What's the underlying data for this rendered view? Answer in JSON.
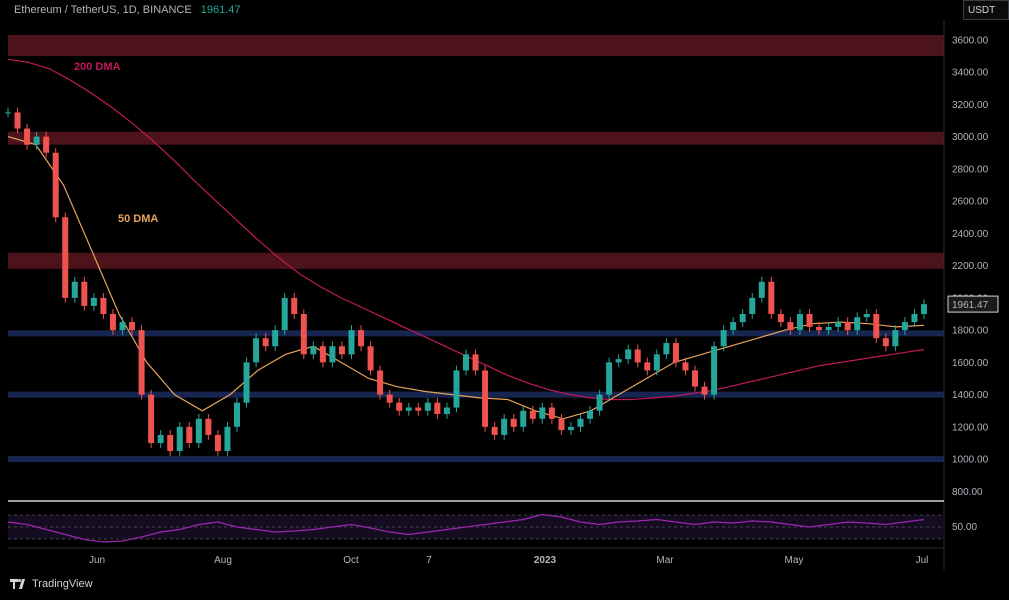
{
  "header": {
    "symbol": "Ethereum / TetherUS, 1D, BINANCE",
    "last_price": "1961.47"
  },
  "currency": "USDT",
  "brand": "TradingView",
  "colors": {
    "up": "#26a69a",
    "down": "#ef5350",
    "dma200": "#c2185b",
    "dma50": "#e8a35a",
    "rsi": "#9c27b0",
    "resistance": "#5a1620",
    "support": "#1a2a5a"
  },
  "chart_data": [
    {
      "type": "candlestick",
      "title": "Ethereum / TetherUS, 1D, BINANCE",
      "ylim": [
        600,
        3700
      ],
      "yticks": [
        "3600.00",
        "3400.00",
        "3200.00",
        "3000.00",
        "2800.00",
        "2600.00",
        "2400.00",
        "2200.00",
        "2000.00",
        "1800.00",
        "1600.00",
        "1400.00",
        "1200.00",
        "1000.00",
        "800.00"
      ],
      "xticks": [
        "Jun",
        "Aug",
        "Oct",
        "7",
        "2023",
        "Mar",
        "May",
        "Jul"
      ],
      "last_price_label": "1961.47",
      "annotations": [
        "200 DMA",
        "50 DMA"
      ],
      "resistance_zones": [
        [
          3500,
          3630
        ],
        [
          2950,
          3030
        ],
        [
          2180,
          2280
        ]
      ],
      "support_lines": [
        1780,
        1400,
        1000
      ],
      "close": [
        3150,
        3050,
        2950,
        3000,
        2900,
        2500,
        2000,
        2100,
        1950,
        2000,
        1900,
        1800,
        1850,
        1800,
        1400,
        1100,
        1150,
        1050,
        1200,
        1100,
        1250,
        1150,
        1050,
        1200,
        1350,
        1600,
        1750,
        1700,
        1800,
        2000,
        1900,
        1650,
        1700,
        1600,
        1700,
        1650,
        1800,
        1700,
        1550,
        1400,
        1350,
        1300,
        1320,
        1300,
        1350,
        1280,
        1320,
        1550,
        1650,
        1550,
        1200,
        1150,
        1250,
        1200,
        1300,
        1250,
        1320,
        1250,
        1180,
        1200,
        1250,
        1300,
        1400,
        1600,
        1620,
        1680,
        1600,
        1550,
        1650,
        1720,
        1600,
        1550,
        1450,
        1400,
        1700,
        1800,
        1850,
        1900,
        2000,
        2100,
        1900,
        1850,
        1800,
        1900,
        1820,
        1800,
        1820,
        1850,
        1800,
        1880,
        1900,
        1750,
        1700,
        1800,
        1850,
        1900,
        1961
      ],
      "dma200": [
        3480,
        3460,
        3420,
        3350,
        3270,
        3180,
        3080,
        2970,
        2850,
        2720,
        2600,
        2480,
        2360,
        2250,
        2150,
        2070,
        2000,
        1940,
        1880,
        1820,
        1760,
        1700,
        1640,
        1580,
        1520,
        1470,
        1430,
        1400,
        1380,
        1370,
        1370,
        1380,
        1390,
        1410,
        1430,
        1460,
        1490,
        1520,
        1550,
        1580,
        1600,
        1620,
        1640,
        1660,
        1680
      ],
      "dma50": [
        3000,
        2950,
        2700,
        2300,
        1900,
        1600,
        1400,
        1300,
        1400,
        1550,
        1650,
        1700,
        1600,
        1500,
        1450,
        1420,
        1400,
        1380,
        1370,
        1300,
        1250,
        1300,
        1400,
        1500,
        1600,
        1650,
        1700,
        1750,
        1800,
        1840,
        1850,
        1840,
        1820,
        1830
      ],
      "rsi": {
        "levels": [
          "50.00"
        ],
        "ylim": [
          0,
          100
        ],
        "values": [
          60,
          55,
          45,
          35,
          25,
          20,
          22,
          30,
          40,
          45,
          55,
          60,
          50,
          45,
          40,
          42,
          45,
          50,
          55,
          48,
          40,
          35,
          40,
          45,
          50,
          55,
          60,
          65,
          75,
          70,
          60,
          55,
          60,
          62,
          65,
          60,
          55,
          60,
          58,
          62,
          60,
          55,
          50,
          55,
          60,
          58,
          55,
          60,
          65
        ]
      }
    }
  ]
}
